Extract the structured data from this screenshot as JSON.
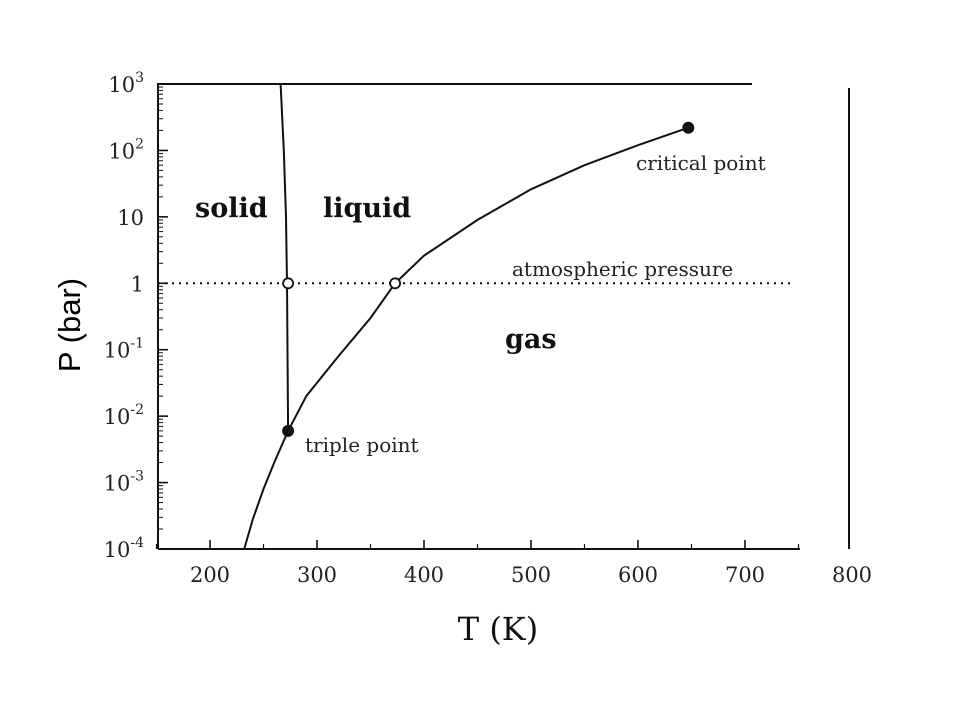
{
  "chart_data": {
    "type": "line",
    "xlabel": "T (K)",
    "ylabel": "P (bar)",
    "xlim": [
      150,
      750
    ],
    "ylim_log10": [
      -4,
      3
    ],
    "y_scale": "log",
    "grid": false,
    "x_ticks": [
      {
        "value": 200,
        "label": "200"
      },
      {
        "value": 300,
        "label": "300"
      },
      {
        "value": 400,
        "label": "400"
      },
      {
        "value": 500,
        "label": "500"
      },
      {
        "value": 600,
        "label": "600"
      },
      {
        "value": 700,
        "label": "700"
      },
      {
        "value": 800,
        "label": "800"
      }
    ],
    "y_ticks": [
      {
        "value": 0.0001,
        "base": "10",
        "exp": "-4"
      },
      {
        "value": 0.001,
        "base": "10",
        "exp": "-3"
      },
      {
        "value": 0.01,
        "base": "10",
        "exp": "-2"
      },
      {
        "value": 0.1,
        "base": "10",
        "exp": "-1"
      },
      {
        "value": 1,
        "base": "1",
        "exp": ""
      },
      {
        "value": 10,
        "base": "10",
        "exp": ""
      },
      {
        "value": 100,
        "base": "10",
        "exp": "2"
      },
      {
        "value": 1000,
        "base": "10",
        "exp": "3"
      }
    ],
    "series": [
      {
        "role": "sublimation-vaporization",
        "points": [
          [
            232,
            0.0001
          ],
          [
            240,
            0.00028
          ],
          [
            250,
            0.0008
          ],
          [
            260,
            0.002
          ],
          [
            273,
            0.006
          ],
          [
            290,
            0.02
          ],
          [
            320,
            0.08
          ],
          [
            350,
            0.3
          ],
          [
            373,
            1
          ],
          [
            400,
            2.6
          ],
          [
            450,
            9
          ],
          [
            500,
            26
          ],
          [
            550,
            60
          ],
          [
            600,
            120
          ],
          [
            647,
            220
          ]
        ]
      },
      {
        "role": "melting",
        "points": [
          [
            273,
            0.006
          ],
          [
            272,
            1
          ],
          [
            271,
            10
          ],
          [
            269,
            100
          ],
          [
            266,
            1000
          ]
        ]
      },
      {
        "role": "atmospheric-pressure",
        "points": [
          [
            150,
            1
          ],
          [
            760,
            1
          ]
        ]
      }
    ],
    "markers": [
      {
        "name": "triple point",
        "x": 273,
        "y": 0.006,
        "filled": true
      },
      {
        "name": "critical point",
        "x": 647,
        "y": 220,
        "filled": true
      },
      {
        "name": "melting at 1 bar",
        "x": 273,
        "y": 1,
        "filled": false
      },
      {
        "name": "boiling at 1 bar",
        "x": 373,
        "y": 1,
        "filled": false
      }
    ],
    "region_labels": [
      "solid",
      "liquid",
      "gas"
    ],
    "annotations": {
      "triple": "triple point",
      "critical": "critical point",
      "atm": "atmospheric pressure"
    },
    "colors": {
      "ink": "#111111",
      "ylabel": "#000000",
      "paper": "#ffffff"
    }
  }
}
